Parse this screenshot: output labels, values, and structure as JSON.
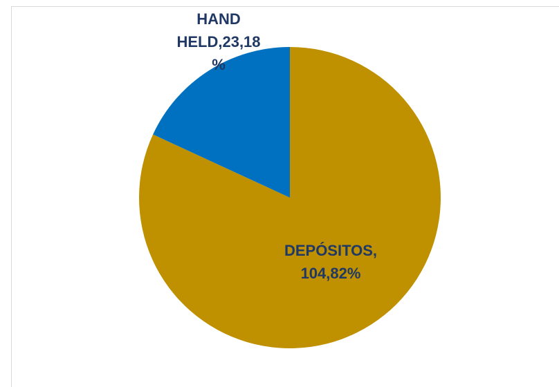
{
  "chart_data": {
    "type": "pie",
    "categories": [
      "DEPÓSITOS",
      "HAND HELD"
    ],
    "values": [
      104.82,
      23.18
    ],
    "unit": "%",
    "colors": [
      "#BF9000",
      "#0070C0"
    ],
    "label_colors": [
      "#1F3864",
      "#1F3864"
    ],
    "data_labels": [
      [
        "DEPÓSITOS,",
        "104,82%"
      ],
      [
        "HAND",
        "HELD,23,18",
        "%"
      ]
    ],
    "title": "",
    "legend": "none"
  }
}
